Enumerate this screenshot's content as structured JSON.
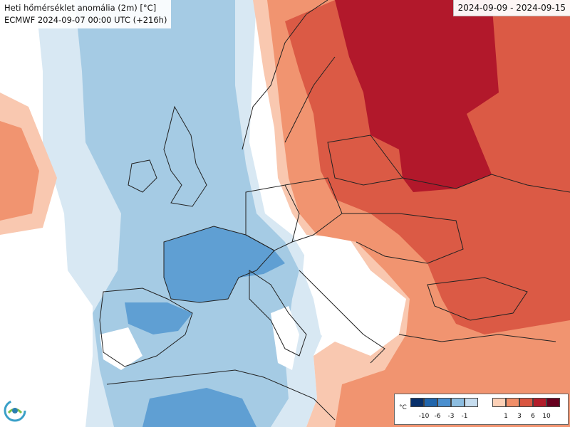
{
  "header": {
    "title": "Heti hőmérséklet anomália (2m) [°C]",
    "run": "ECMWF 2024-09-07 00:00 UTC (+216h)",
    "date_range": "2024-09-09 - 2024-09-15"
  },
  "legend": {
    "unit": "°C",
    "negative_ticks": [
      "-10",
      "-6",
      "-3",
      "-1"
    ],
    "positive_ticks": [
      "1",
      "3",
      "6",
      "10"
    ],
    "negative_colors": [
      "#08306b",
      "#2166ac",
      "#4a8fcf",
      "#8cbde0",
      "#c6ddef"
    ],
    "positive_colors": [
      "#fcd0b6",
      "#f08e68",
      "#d95540",
      "#b21c2a",
      "#67001f"
    ]
  },
  "colors": {
    "near_zero": "#ffffff",
    "cold_1": "#d8e8f3",
    "cold_2": "#a5cbe4",
    "cold_3": "#5f9fd3",
    "warm_1": "#f9c8b0",
    "warm_2": "#f19470",
    "warm_3": "#db5a45",
    "warm_4": "#b2182b",
    "border": "#222222"
  },
  "logo": {
    "name": "logo-icon"
  }
}
